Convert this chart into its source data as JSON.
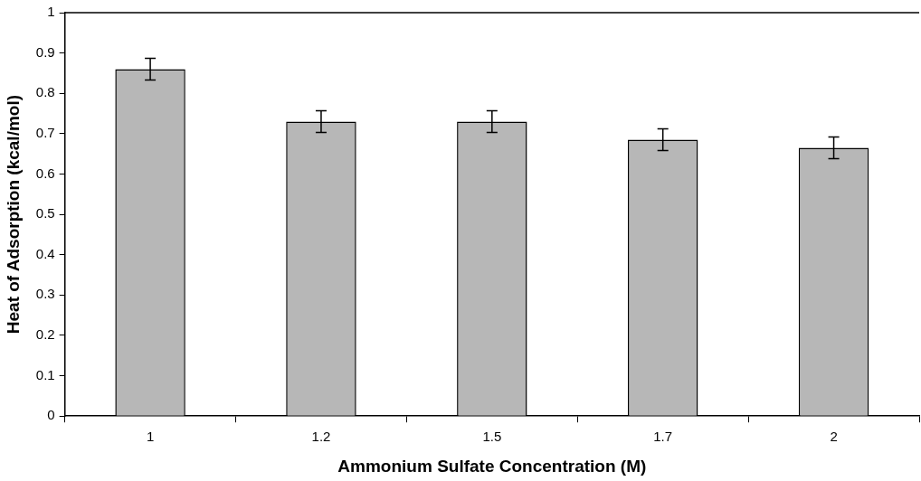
{
  "chart_data": {
    "type": "bar",
    "xlabel": "Ammonium Sulfate Concentration (M)",
    "ylabel": "Heat of Adsorption (kcal/mol)",
    "categories": [
      "1",
      "1.2",
      "1.5",
      "1.7",
      "2"
    ],
    "values": [
      0.86,
      0.73,
      0.73,
      0.685,
      0.665
    ],
    "errors": [
      0.027,
      0.027,
      0.027,
      0.027,
      0.027
    ],
    "color": "#b7b7b7",
    "ylim": [
      0,
      1
    ],
    "yticks": [
      0,
      0.1,
      0.2,
      0.3,
      0.4,
      0.5,
      0.6,
      0.7,
      0.8,
      0.9,
      1
    ],
    "grid": false,
    "legend": false
  }
}
